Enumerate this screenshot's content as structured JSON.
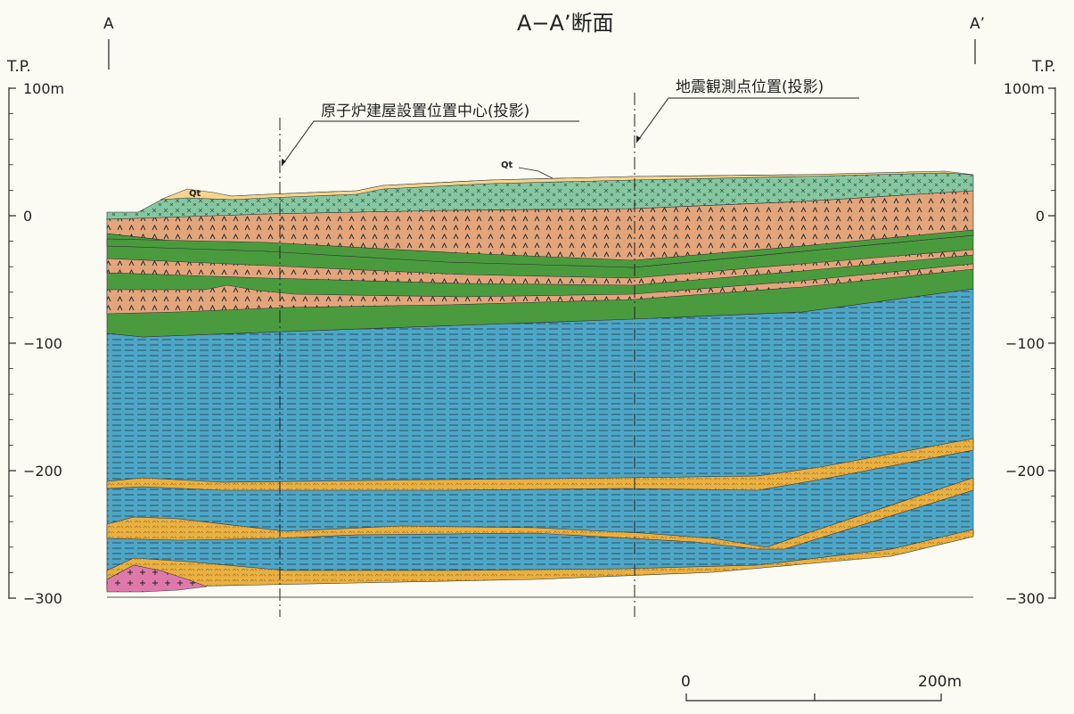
{
  "title": "A−A’断面",
  "endpoints": {
    "left": "A",
    "right": "A’"
  },
  "axis": {
    "label": "T.P.",
    "left_ticks": [
      "100m",
      "0",
      "−100",
      "−200",
      "−300"
    ],
    "right_ticks": [
      "100m",
      "0",
      "−100",
      "−200",
      "−300"
    ],
    "elevations": [
      100,
      0,
      -100,
      -200,
      -300
    ]
  },
  "annotations": {
    "reactor": "原子炉建屋設置位置中心(投影)",
    "seismic": "地震観測点位置(投影)",
    "qt_a": "Qt",
    "qt_b": "Qt"
  },
  "scale_bar": {
    "start": "0",
    "end": "200m"
  },
  "colors": {
    "qt": "#f5d58e",
    "tuff_green": "#86c6a0",
    "tuff_brown": "#e2a57c",
    "green": "#4a9b3e",
    "mudstone": "#4ea6c6",
    "sand": "#e9b042",
    "granite": "#df79ac"
  }
}
